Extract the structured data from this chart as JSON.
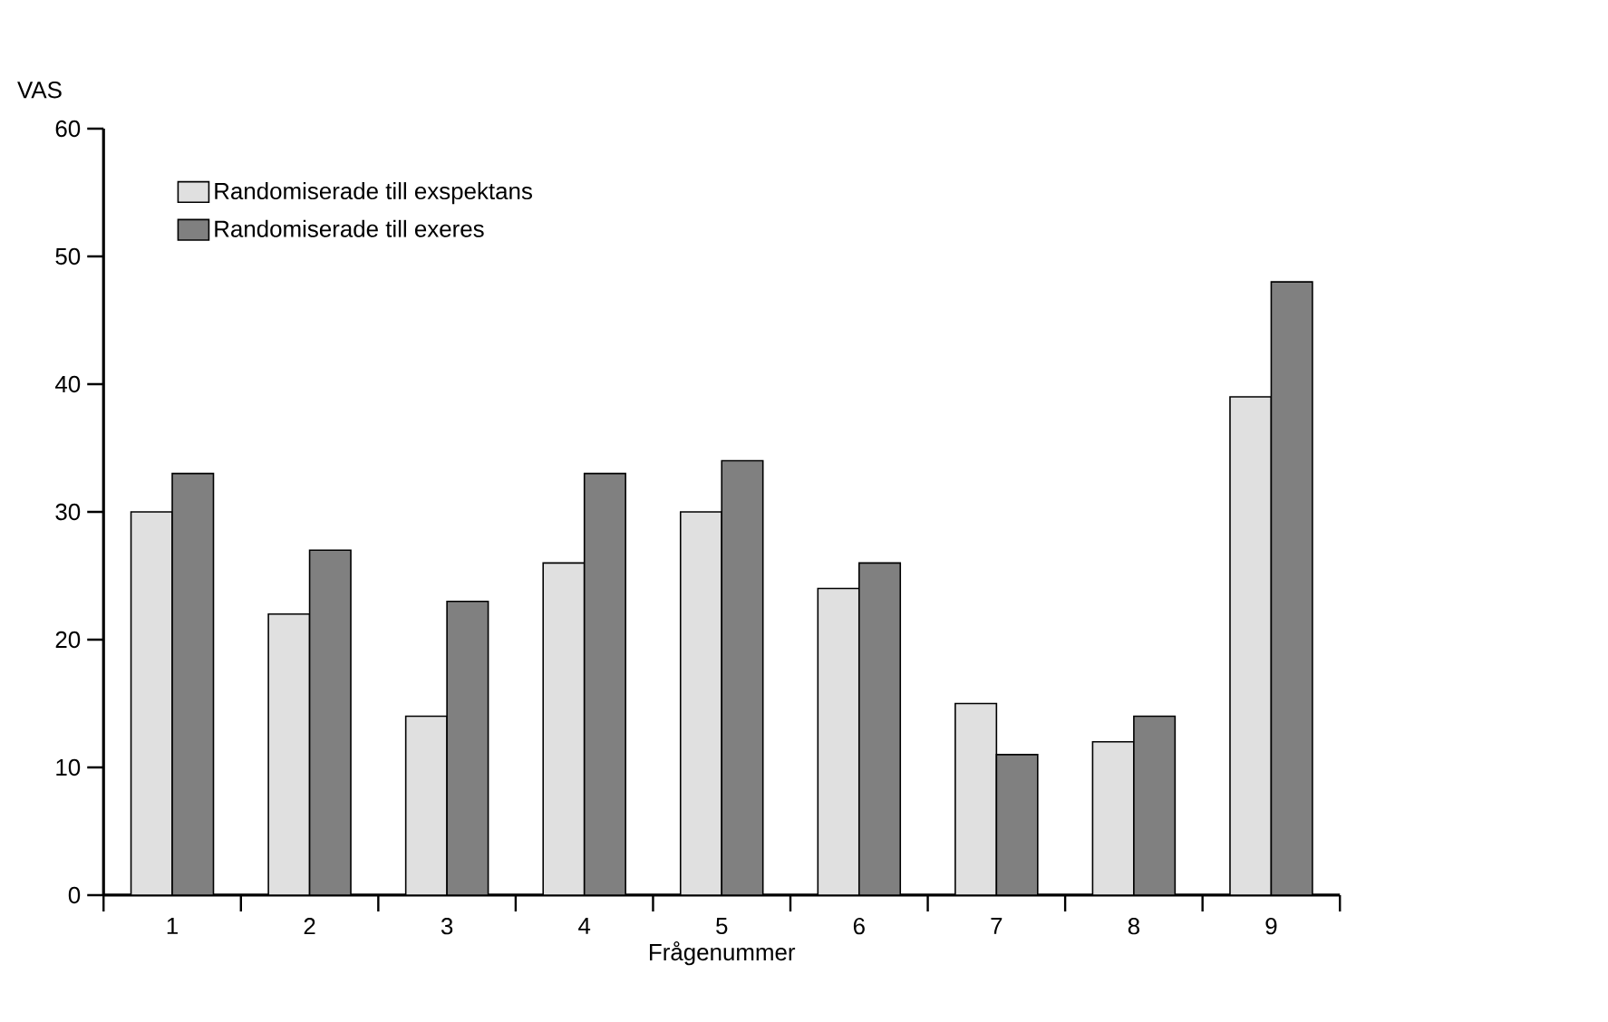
{
  "chart_data": {
    "type": "bar",
    "xlabel": "Frågenummer",
    "ylabel": "VAS",
    "categories": [
      "1",
      "2",
      "3",
      "4",
      "5",
      "6",
      "7",
      "8",
      "9"
    ],
    "series": [
      {
        "name": "Randomiserade till exspektans",
        "color": "#e0e0e0",
        "values": [
          30,
          22,
          14,
          26,
          30,
          24,
          15,
          12,
          39
        ]
      },
      {
        "name": "Randomiserade till exeres",
        "color": "#808080",
        "values": [
          33,
          27,
          23,
          33,
          34,
          26,
          11,
          14,
          48
        ]
      }
    ],
    "ylim": [
      0,
      60
    ],
    "yticks": [
      0,
      10,
      20,
      30,
      40,
      50,
      60
    ],
    "grid": false,
    "legend": "top left"
  }
}
